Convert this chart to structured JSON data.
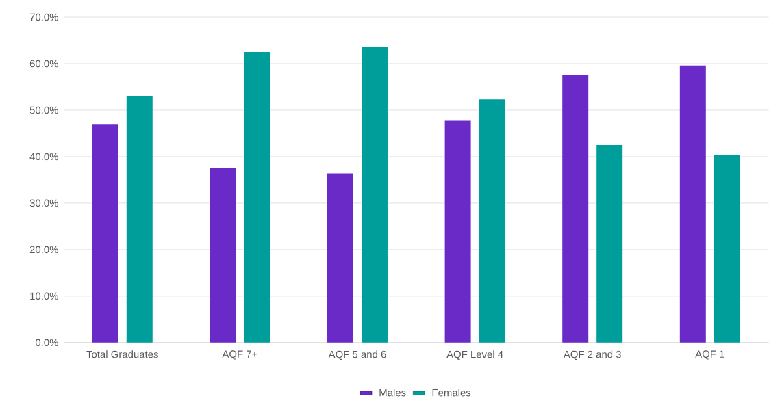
{
  "chart_data": {
    "type": "bar",
    "categories": [
      "Total Graduates",
      "AQF 7+",
      "AQF 5 and 6",
      "AQF Level 4",
      "AQF 2 and 3",
      "AQF 1"
    ],
    "series": [
      {
        "name": "Males",
        "color": "#6a2ac8",
        "values": [
          47.0,
          37.5,
          36.4,
          47.7,
          57.5,
          59.6
        ]
      },
      {
        "name": "Females",
        "color": "#009e9a",
        "values": [
          53.0,
          62.5,
          63.6,
          52.3,
          42.5,
          40.4
        ]
      }
    ],
    "ylim": [
      0,
      70
    ],
    "yticks": [
      {
        "value": 0,
        "label": "0.0%"
      },
      {
        "value": 10,
        "label": "10.0%"
      },
      {
        "value": 20,
        "label": "20.0%"
      },
      {
        "value": 30,
        "label": "30.0%"
      },
      {
        "value": 40,
        "label": "40.0%"
      },
      {
        "value": 50,
        "label": "50.0%"
      },
      {
        "value": 60,
        "label": "60.0%"
      },
      {
        "value": 70,
        "label": "70.0%"
      }
    ],
    "grid": "y",
    "legend": "bottom"
  }
}
